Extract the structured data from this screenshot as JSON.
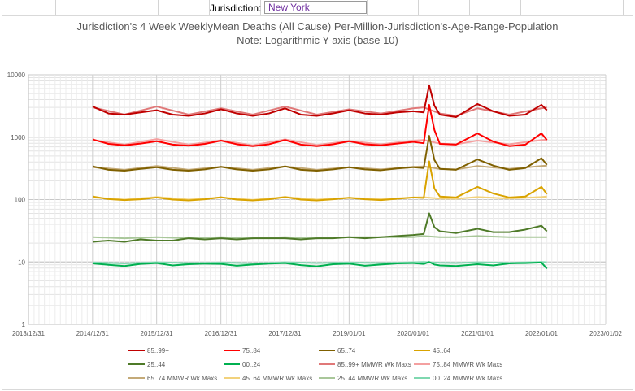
{
  "sheet": {
    "label": "Jurisdiction:",
    "value": "New York"
  },
  "chart_data": {
    "type": "line",
    "title": "Jurisdiction's 4 Week WeeklyMean Deaths (All Cause) Per-Million-Jurisdiction's-Age-Range-Population",
    "subtitle": "Note: Logarithmic Y-axis (base 10)",
    "y_scale": "log10",
    "ylim": [
      1,
      10000
    ],
    "y_ticks": [
      "1",
      "10",
      "100",
      "1000",
      "10000"
    ],
    "x_ticks": [
      "2013/12/31",
      "2014/12/31",
      "2015/12/31",
      "2016/12/31",
      "2017/12/31",
      "2019/01/01",
      "2020/01/01",
      "2021/01/01",
      "2022/01/01",
      "2023/01/02"
    ],
    "grid": true,
    "legend_position": "bottom",
    "series": [
      {
        "name": "85..99+",
        "color": "#c00000",
        "width": 2,
        "x": [
          "2015-01",
          "2015-04",
          "2015-07",
          "2015-10",
          "2016-01",
          "2016-04",
          "2016-07",
          "2016-10",
          "2017-01",
          "2017-04",
          "2017-07",
          "2017-10",
          "2018-01",
          "2018-04",
          "2018-07",
          "2018-10",
          "2019-01",
          "2019-04",
          "2019-07",
          "2019-10",
          "2020-01",
          "2020-03",
          "2020-04",
          "2020-05",
          "2020-06",
          "2020-09",
          "2021-01",
          "2021-04",
          "2021-07",
          "2021-10",
          "2022-01",
          "2022-02"
        ],
        "y": [
          3100,
          2400,
          2300,
          2500,
          2700,
          2300,
          2200,
          2400,
          2800,
          2400,
          2200,
          2400,
          2900,
          2300,
          2200,
          2400,
          2700,
          2400,
          2300,
          2500,
          2600,
          2500,
          6800,
          3200,
          2300,
          2100,
          3400,
          2600,
          2200,
          2300,
          3300,
          2700
        ]
      },
      {
        "name": "75..84",
        "color": "#ff0000",
        "width": 2,
        "x": [
          "2015-01",
          "2015-04",
          "2015-07",
          "2015-10",
          "2016-01",
          "2016-04",
          "2016-07",
          "2016-10",
          "2017-01",
          "2017-04",
          "2017-07",
          "2017-10",
          "2018-01",
          "2018-04",
          "2018-07",
          "2018-10",
          "2019-01",
          "2019-04",
          "2019-07",
          "2019-10",
          "2020-01",
          "2020-03",
          "2020-04",
          "2020-05",
          "2020-06",
          "2020-09",
          "2021-01",
          "2021-04",
          "2021-07",
          "2021-10",
          "2022-01",
          "2022-02"
        ],
        "y": [
          920,
          780,
          740,
          790,
          860,
          760,
          730,
          780,
          880,
          770,
          720,
          770,
          900,
          760,
          720,
          770,
          860,
          770,
          740,
          790,
          840,
          800,
          3300,
          1300,
          780,
          760,
          1150,
          850,
          720,
          760,
          1150,
          900
        ]
      },
      {
        "name": "65..74",
        "color": "#7f6000",
        "width": 2,
        "x": [
          "2015-01",
          "2015-04",
          "2015-07",
          "2015-10",
          "2016-01",
          "2016-04",
          "2016-07",
          "2016-10",
          "2017-01",
          "2017-04",
          "2017-07",
          "2017-10",
          "2018-01",
          "2018-04",
          "2018-07",
          "2018-10",
          "2019-01",
          "2019-04",
          "2019-07",
          "2019-10",
          "2020-01",
          "2020-03",
          "2020-04",
          "2020-05",
          "2020-06",
          "2020-09",
          "2021-01",
          "2021-04",
          "2021-07",
          "2021-10",
          "2022-01",
          "2022-02"
        ],
        "y": [
          340,
          300,
          290,
          310,
          330,
          300,
          290,
          305,
          335,
          305,
          290,
          305,
          340,
          300,
          290,
          305,
          330,
          305,
          295,
          315,
          330,
          320,
          1050,
          430,
          310,
          300,
          440,
          350,
          300,
          320,
          460,
          360
        ]
      },
      {
        "name": "45..64",
        "color": "#d9a300",
        "width": 2,
        "x": [
          "2015-01",
          "2015-04",
          "2015-07",
          "2015-10",
          "2016-01",
          "2016-04",
          "2016-07",
          "2016-10",
          "2017-01",
          "2017-04",
          "2017-07",
          "2017-10",
          "2018-01",
          "2018-04",
          "2018-07",
          "2018-10",
          "2019-01",
          "2019-04",
          "2019-07",
          "2019-10",
          "2020-01",
          "2020-03",
          "2020-04",
          "2020-05",
          "2020-06",
          "2020-09",
          "2021-01",
          "2021-04",
          "2021-07",
          "2021-10",
          "2022-01",
          "2022-02"
        ],
        "y": [
          112,
          102,
          98,
          101,
          108,
          100,
          97,
          101,
          109,
          100,
          97,
          101,
          110,
          100,
          97,
          101,
          107,
          101,
          98,
          103,
          108,
          106,
          410,
          150,
          112,
          108,
          160,
          125,
          108,
          112,
          160,
          122
        ]
      },
      {
        "name": "25..44",
        "color": "#4e7a28",
        "width": 2,
        "x": [
          "2015-01",
          "2015-04",
          "2015-07",
          "2015-10",
          "2016-01",
          "2016-04",
          "2016-07",
          "2016-10",
          "2017-01",
          "2017-04",
          "2017-07",
          "2017-10",
          "2018-01",
          "2018-04",
          "2018-07",
          "2018-10",
          "2019-01",
          "2019-04",
          "2019-07",
          "2019-10",
          "2020-01",
          "2020-03",
          "2020-04",
          "2020-05",
          "2020-06",
          "2020-09",
          "2021-01",
          "2021-04",
          "2021-07",
          "2021-10",
          "2022-01",
          "2022-02"
        ],
        "y": [
          21,
          22,
          21,
          23,
          22,
          22,
          24,
          23,
          24,
          23,
          24,
          24,
          24,
          23,
          24,
          24,
          25,
          24,
          25,
          26,
          27,
          28,
          60,
          36,
          31,
          29,
          34,
          30,
          30,
          33,
          38,
          31
        ]
      },
      {
        "name": "00..24",
        "color": "#00b050",
        "width": 2,
        "x": [
          "2015-01",
          "2015-04",
          "2015-07",
          "2015-10",
          "2016-01",
          "2016-04",
          "2016-07",
          "2016-10",
          "2017-01",
          "2017-04",
          "2017-07",
          "2017-10",
          "2018-01",
          "2018-04",
          "2018-07",
          "2018-10",
          "2019-01",
          "2019-04",
          "2019-07",
          "2019-10",
          "2020-01",
          "2020-03",
          "2020-04",
          "2020-05",
          "2020-06",
          "2020-09",
          "2021-01",
          "2021-04",
          "2021-07",
          "2021-10",
          "2022-01",
          "2022-02"
        ],
        "y": [
          9.5,
          9,
          8.6,
          9.3,
          9.6,
          8.8,
          9.2,
          9.4,
          9.3,
          8.7,
          9.1,
          9.4,
          9.6,
          8.9,
          8.5,
          9.2,
          9.4,
          8.7,
          9.1,
          9.5,
          9.6,
          9.3,
          10,
          9.1,
          8.8,
          8.6,
          9.2,
          8.8,
          9.5,
          9.6,
          9.8,
          7.8
        ]
      },
      {
        "name": "85..99+ MMWR Wk Maxs",
        "color": "#e07878",
        "width": 2,
        "x": [
          "2015-01",
          "2015-07",
          "2016-01",
          "2016-07",
          "2017-01",
          "2017-07",
          "2018-01",
          "2018-07",
          "2019-01",
          "2019-07",
          "2020-01",
          "2020-03",
          "2020-06",
          "2020-09",
          "2021-01",
          "2021-07",
          "2022-01",
          "2022-02"
        ],
        "y": [
          3000,
          2300,
          3100,
          2300,
          2900,
          2300,
          3100,
          2300,
          2800,
          2400,
          2900,
          3000,
          2400,
          2200,
          2900,
          2300,
          2900,
          3000
        ]
      },
      {
        "name": "75..84 MMWR Wk Maxs",
        "color": "#f4a0a0",
        "width": 2,
        "x": [
          "2015-01",
          "2015-07",
          "2016-01",
          "2016-07",
          "2017-01",
          "2017-07",
          "2018-01",
          "2018-07",
          "2019-01",
          "2019-07",
          "2020-01",
          "2020-03",
          "2020-06",
          "2020-09",
          "2021-01",
          "2021-07",
          "2022-01",
          "2022-02"
        ],
        "y": [
          900,
          760,
          930,
          760,
          890,
          740,
          920,
          750,
          870,
          770,
          880,
          900,
          790,
          770,
          880,
          770,
          900,
          910
        ]
      },
      {
        "name": "65..74 MMWR Wk Maxs",
        "color": "#c4aa78",
        "width": 2,
        "x": [
          "2015-01",
          "2015-07",
          "2016-01",
          "2016-07",
          "2017-01",
          "2017-07",
          "2018-01",
          "2018-07",
          "2019-01",
          "2019-07",
          "2020-01",
          "2020-03",
          "2020-06",
          "2020-09",
          "2021-01",
          "2021-07",
          "2022-01",
          "2022-02"
        ],
        "y": [
          330,
          300,
          345,
          300,
          335,
          300,
          340,
          300,
          330,
          305,
          335,
          340,
          310,
          305,
          345,
          310,
          345,
          350
        ]
      },
      {
        "name": "45..64 MMWR Wk Maxs",
        "color": "#f2d27c",
        "width": 2,
        "x": [
          "2015-01",
          "2015-07",
          "2016-01",
          "2016-07",
          "2017-01",
          "2017-07",
          "2018-01",
          "2018-07",
          "2019-01",
          "2019-07",
          "2020-01",
          "2020-03",
          "2020-06",
          "2020-09",
          "2021-01",
          "2021-07",
          "2022-01",
          "2022-02"
        ],
        "y": [
          108,
          100,
          110,
          100,
          108,
          99,
          110,
          100,
          107,
          101,
          108,
          109,
          104,
          103,
          110,
          104,
          110,
          112
        ]
      },
      {
        "name": "25..44 MMWR Wk Maxs",
        "color": "#a9c79a",
        "width": 2,
        "x": [
          "2015-01",
          "2015-07",
          "2016-01",
          "2016-07",
          "2017-01",
          "2017-07",
          "2018-01",
          "2018-07",
          "2019-01",
          "2019-07",
          "2020-01",
          "2020-03",
          "2020-06",
          "2020-09",
          "2021-01",
          "2021-07",
          "2022-01",
          "2022-02"
        ],
        "y": [
          25,
          24,
          25,
          24,
          25,
          24,
          25,
          24,
          25,
          25,
          25,
          26,
          25,
          25,
          26,
          25,
          25,
          25
        ]
      },
      {
        "name": "00..24 MMWR Wk Maxs",
        "color": "#7fd8b0",
        "width": 2,
        "x": [
          "2015-01",
          "2015-07",
          "2016-01",
          "2016-07",
          "2017-01",
          "2017-07",
          "2018-01",
          "2018-07",
          "2019-01",
          "2019-07",
          "2020-01",
          "2020-03",
          "2020-06",
          "2020-09",
          "2021-01",
          "2021-07",
          "2022-01",
          "2022-02"
        ],
        "y": [
          9.8,
          9.5,
          9.9,
          9.6,
          9.8,
          9.5,
          9.9,
          9.6,
          9.8,
          9.6,
          9.9,
          10,
          9.7,
          9.6,
          9.9,
          9.7,
          10,
          9.9
        ]
      }
    ]
  }
}
